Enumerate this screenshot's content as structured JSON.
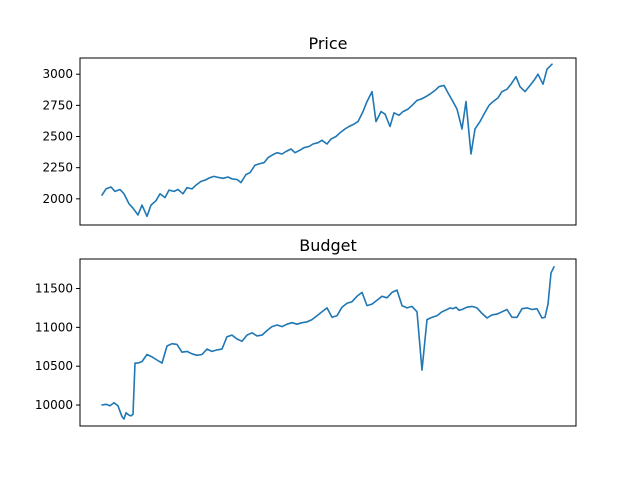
{
  "chart_data": [
    {
      "type": "line",
      "title": "Price",
      "xlabel": "",
      "ylabel": "",
      "xticks": "hidden",
      "ylim": [
        1790,
        3130
      ],
      "yticks": [
        2000,
        2250,
        2500,
        2750,
        3000
      ],
      "yticklabels": [
        "2000",
        "2250",
        "2500",
        "2750",
        "3000"
      ],
      "grid": false,
      "color": "#1f77b4",
      "series": [
        {
          "x": [
            0,
            4,
            9,
            13,
            18,
            22,
            27,
            31,
            36,
            40,
            45,
            49,
            54,
            58,
            63,
            67,
            72,
            76,
            81,
            85,
            90,
            94,
            99,
            103,
            108,
            112,
            117,
            121,
            126,
            130,
            135,
            139,
            144,
            148,
            153,
            157,
            162,
            166,
            171,
            175,
            180,
            184,
            189,
            193,
            198,
            202,
            207,
            211,
            216,
            220,
            225,
            229,
            234,
            238,
            243,
            247,
            252,
            256,
            261,
            265,
            270,
            274,
            279,
            283,
            288,
            292,
            297,
            301,
            306,
            310,
            315,
            319,
            324,
            328,
            333,
            337,
            342,
            346,
            351,
            355,
            360,
            364,
            369,
            373,
            378,
            382,
            387,
            391,
            396,
            400,
            405,
            409,
            414,
            418,
            423,
            427,
            432,
            436,
            441,
            445,
            450
          ],
          "values": [
            2030,
            2080,
            2095,
            2060,
            2075,
            2040,
            1960,
            1925,
            1870,
            1950,
            1860,
            1950,
            1985,
            2040,
            2010,
            2070,
            2060,
            2075,
            2040,
            2090,
            2080,
            2110,
            2140,
            2150,
            2170,
            2180,
            2170,
            2165,
            2175,
            2160,
            2155,
            2130,
            2195,
            2210,
            2270,
            2280,
            2290,
            2330,
            2355,
            2370,
            2360,
            2380,
            2400,
            2370,
            2390,
            2410,
            2420,
            2440,
            2450,
            2470,
            2440,
            2480,
            2500,
            2530,
            2560,
            2580,
            2600,
            2620,
            2700,
            2780,
            2860,
            2620,
            2700,
            2680,
            2580,
            2690,
            2670,
            2700,
            2720,
            2750,
            2790,
            2800,
            2820,
            2840,
            2870,
            2900,
            2910,
            2850,
            2780,
            2720,
            2560,
            2780,
            2360,
            2560,
            2620,
            2680,
            2750,
            2780,
            2810,
            2860,
            2880,
            2920,
            2980,
            2900,
            2860,
            2900,
            2950,
            3000,
            2920,
            3040,
            3080
          ]
        }
      ]
    },
    {
      "type": "line",
      "title": "Budget",
      "xlabel": "",
      "ylabel": "",
      "xticks": "hidden",
      "ylim": [
        9730,
        11880
      ],
      "yticks": [
        10000,
        10500,
        11000,
        11500
      ],
      "yticklabels": [
        "10000",
        "10500",
        "11000",
        "11500"
      ],
      "grid": false,
      "color": "#1f77b4",
      "series": [
        {
          "x": [
            0,
            4,
            8,
            12,
            16,
            20,
            22,
            24,
            27,
            29,
            31,
            33,
            36,
            40,
            45,
            50,
            55,
            60,
            65,
            70,
            75,
            80,
            85,
            90,
            95,
            100,
            105,
            110,
            115,
            120,
            125,
            130,
            135,
            140,
            145,
            150,
            155,
            160,
            165,
            170,
            175,
            180,
            185,
            190,
            195,
            200,
            205,
            210,
            215,
            220,
            225,
            230,
            235,
            240,
            245,
            250,
            255,
            260,
            265,
            270,
            275,
            280,
            285,
            290,
            295,
            300,
            305,
            310,
            315,
            320,
            325,
            330,
            335,
            340,
            345,
            348,
            351,
            354,
            357,
            360,
            365,
            370,
            375,
            380,
            385,
            390,
            395,
            400,
            405,
            410,
            415,
            420,
            425,
            430,
            435,
            440,
            443,
            446,
            449,
            452
          ],
          "values": [
            10000,
            10010,
            9990,
            10030,
            9990,
            9850,
            9820,
            9900,
            9870,
            9860,
            9880,
            10540,
            10540,
            10560,
            10650,
            10620,
            10580,
            10540,
            10760,
            10790,
            10780,
            10680,
            10690,
            10660,
            10640,
            10650,
            10720,
            10690,
            10710,
            10720,
            10880,
            10900,
            10850,
            10820,
            10900,
            10930,
            10890,
            10900,
            10960,
            11010,
            11030,
            11010,
            11040,
            11060,
            11040,
            11060,
            11070,
            11100,
            11150,
            11200,
            11250,
            11130,
            11150,
            11260,
            11310,
            11330,
            11400,
            11450,
            11280,
            11300,
            11350,
            11400,
            11380,
            11450,
            11480,
            11280,
            11250,
            11270,
            11200,
            10450,
            11100,
            11130,
            11150,
            11200,
            11230,
            11250,
            11240,
            11260,
            11220,
            11230,
            11260,
            11270,
            11250,
            11180,
            11120,
            11160,
            11170,
            11200,
            11230,
            11130,
            11130,
            11240,
            11250,
            11230,
            11240,
            11120,
            11130,
            11300,
            11700,
            11780
          ]
        }
      ]
    }
  ]
}
